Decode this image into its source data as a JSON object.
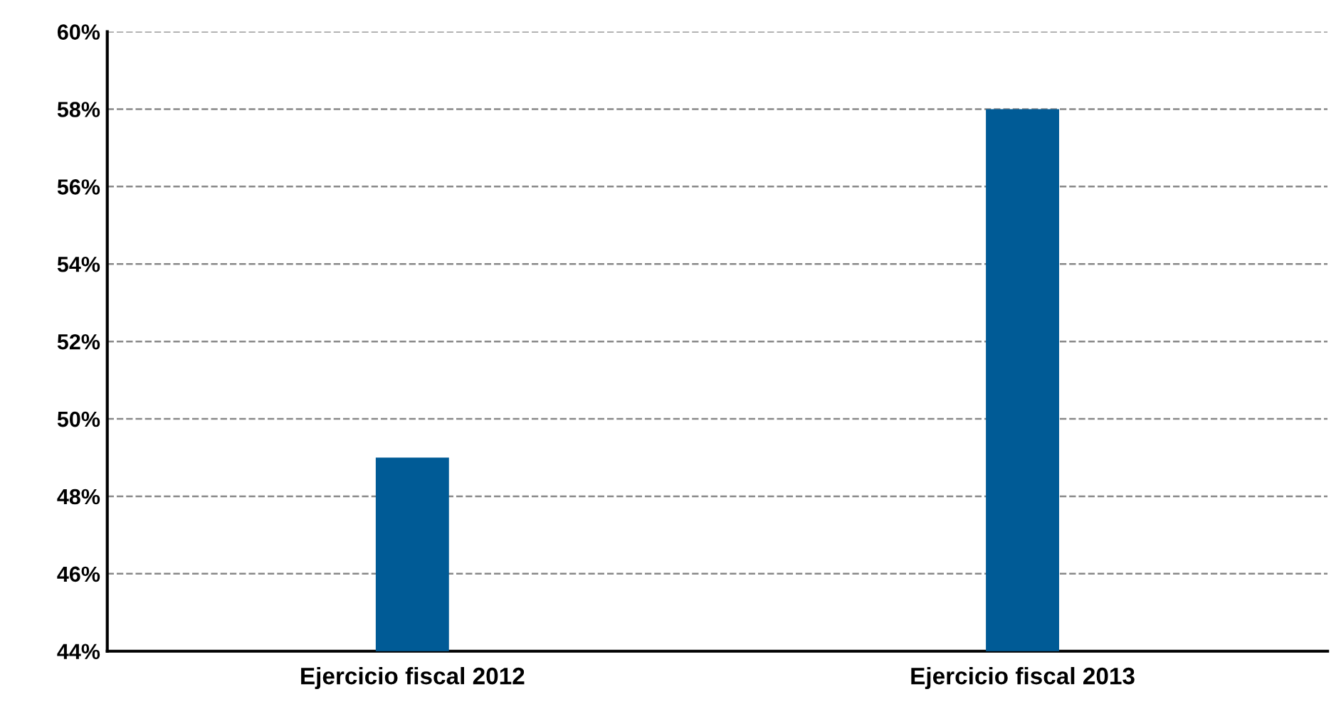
{
  "chart_data": {
    "type": "bar",
    "categories": [
      "Ejercicio fiscal 2012",
      "Ejercicio fiscal 2013"
    ],
    "values": [
      49,
      58
    ],
    "color": "#005b96",
    "ylim": [
      44,
      60
    ],
    "yticks": [
      {
        "value": 44,
        "label": "44%"
      },
      {
        "value": 46,
        "label": "46%"
      },
      {
        "value": 48,
        "label": "48%"
      },
      {
        "value": 50,
        "label": "50%"
      },
      {
        "value": 52,
        "label": "52%"
      },
      {
        "value": 54,
        "label": "54%"
      },
      {
        "value": 56,
        "label": "56%"
      },
      {
        "value": 58,
        "label": "58%"
      },
      {
        "value": 60,
        "label": "60%"
      }
    ],
    "grid": "y",
    "legend": false
  }
}
